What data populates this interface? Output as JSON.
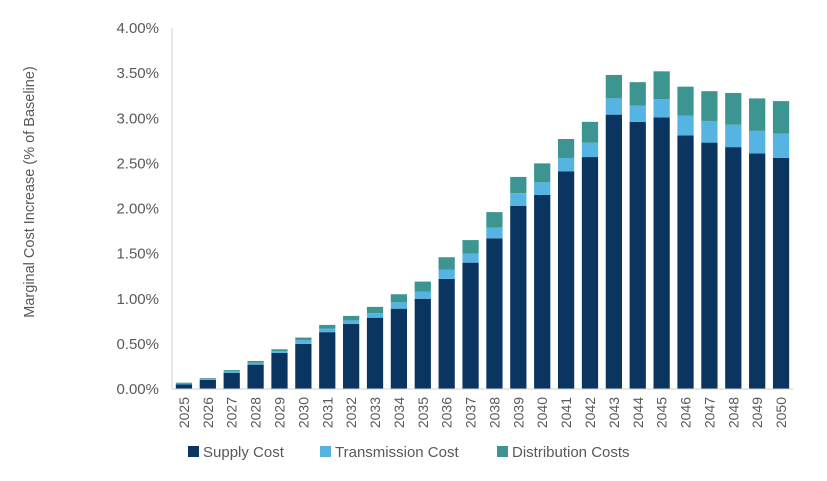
{
  "chart_data": {
    "type": "bar",
    "stacked": true,
    "ylabel": "Marginal Cost Increase (% of Baseline)",
    "xlabel": "",
    "title": "",
    "ylim": [
      0,
      4.0
    ],
    "yticks": [
      "0.00%",
      "0.50%",
      "1.00%",
      "1.50%",
      "2.00%",
      "2.50%",
      "3.00%",
      "3.50%",
      "4.00%"
    ],
    "grid": false,
    "legend_position": "bottom",
    "categories": [
      "2025",
      "2026",
      "2027",
      "2028",
      "2029",
      "2030",
      "2031",
      "2032",
      "2033",
      "2034",
      "2035",
      "2036",
      "2037",
      "2038",
      "2039",
      "2040",
      "2041",
      "2042",
      "2043",
      "2044",
      "2045",
      "2046",
      "2047",
      "2048",
      "2049",
      "2050"
    ],
    "series": [
      {
        "name": "Supply Cost",
        "color": "#0b3561",
        "values": [
          0.05,
          0.1,
          0.18,
          0.27,
          0.4,
          0.5,
          0.63,
          0.72,
          0.79,
          0.89,
          1.0,
          1.22,
          1.4,
          1.67,
          2.03,
          2.15,
          2.41,
          2.57,
          3.04,
          2.96,
          3.01,
          2.81,
          2.73,
          2.68,
          2.61,
          2.56
        ]
      },
      {
        "name": "Transmission Cost",
        "color": "#56b4e3",
        "values": [
          0.01,
          0.01,
          0.02,
          0.02,
          0.02,
          0.04,
          0.04,
          0.04,
          0.05,
          0.07,
          0.08,
          0.1,
          0.1,
          0.12,
          0.14,
          0.14,
          0.15,
          0.16,
          0.18,
          0.18,
          0.2,
          0.22,
          0.24,
          0.25,
          0.25,
          0.27
        ]
      },
      {
        "name": "Distribution Costs",
        "color": "#3d9592",
        "values": [
          0.01,
          0.01,
          0.01,
          0.02,
          0.02,
          0.03,
          0.04,
          0.05,
          0.07,
          0.09,
          0.11,
          0.14,
          0.15,
          0.17,
          0.18,
          0.21,
          0.21,
          0.23,
          0.26,
          0.26,
          0.31,
          0.32,
          0.33,
          0.35,
          0.36,
          0.36
        ]
      }
    ]
  }
}
